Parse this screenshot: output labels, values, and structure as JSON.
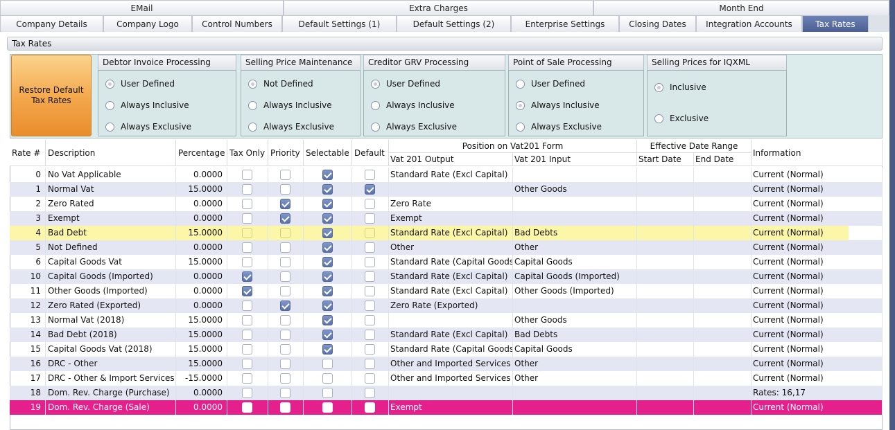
{
  "tabs_top": [
    "EMail",
    "Extra Charges",
    "Month End"
  ],
  "tabs_bottom": [
    "Company Details",
    "Company Logo",
    "Control Numbers",
    "Default Settings (1)",
    "Default Settings (2)",
    "Enterprise Settings",
    "Closing Dates",
    "Integration Accounts",
    "Tax Rates"
  ],
  "active_tab": "Tax Rates",
  "panel_title": "Tax Rates",
  "restore_button": {
    "line1": "Restore Default",
    "line2": "Tax Rates"
  },
  "groups": [
    {
      "title": "Debtor Invoice Processing",
      "options": [
        "User Defined",
        "Always Inclusive",
        "Always Exclusive"
      ],
      "selected": 0
    },
    {
      "title": "Selling Price Maintenance",
      "options": [
        "Not Defined",
        "Always Inclusive",
        "Always Exclusive"
      ],
      "selected": 0
    },
    {
      "title": "Creditor GRV Processing",
      "options": [
        "User Defined",
        "Always Inclusive",
        "Always Exclusive"
      ],
      "selected": 0
    },
    {
      "title": "Point of Sale Processing",
      "options": [
        "User Defined",
        "Always Inclusive",
        "Always Exclusive"
      ],
      "selected": 1
    },
    {
      "title": "Selling Prices for IQXML",
      "options": [
        "Inclusive",
        "Exclusive"
      ],
      "selected": 0
    }
  ],
  "columns": {
    "rate": "Rate #",
    "description": "Description",
    "percentage": "Percentage",
    "tax_only": "Tax Only",
    "priority": "Priority",
    "selectable": "Selectable",
    "default": "Default",
    "vat201_group": "Position on Vat201 Form",
    "vat_output": "Vat 201 Output",
    "vat_input": "Vat 201 Input",
    "date_group": "Effective Date Range",
    "start_date": "Start Date",
    "end_date": "End Date",
    "information": "Information"
  },
  "rows": [
    {
      "rate": "0",
      "description": "No Vat Applicable",
      "percentage": "0.0000",
      "tax_only": false,
      "priority": false,
      "selectable": true,
      "default": false,
      "vat_output": "Standard Rate (Excl Capital)",
      "vat_input": "",
      "information": "Current (Normal)"
    },
    {
      "rate": "1",
      "description": "Normal Vat",
      "percentage": "15.0000",
      "tax_only": false,
      "priority": false,
      "selectable": true,
      "default": true,
      "vat_output": "",
      "vat_input": "Other Goods",
      "information": "Current (Normal)"
    },
    {
      "rate": "2",
      "description": "Zero Rated",
      "percentage": "0.0000",
      "tax_only": false,
      "priority": true,
      "selectable": true,
      "default": false,
      "vat_output": "Zero Rate",
      "vat_input": "",
      "information": "Current (Normal)"
    },
    {
      "rate": "3",
      "description": "Exempt",
      "percentage": "0.0000",
      "tax_only": false,
      "priority": true,
      "selectable": true,
      "default": false,
      "vat_output": "Exempt",
      "vat_input": "",
      "information": "Current (Normal)"
    },
    {
      "rate": "4",
      "description": "Bad Debt",
      "percentage": "15.0000",
      "tax_only": false,
      "priority": false,
      "selectable": true,
      "default": false,
      "vat_output": "Standard Rate (Excl Capital)",
      "vat_input": "Bad Debts",
      "information": "Current (Normal)"
    },
    {
      "rate": "5",
      "description": "Not Defined",
      "percentage": "0.0000",
      "tax_only": false,
      "priority": false,
      "selectable": true,
      "default": false,
      "vat_output": "Other",
      "vat_input": "Other",
      "information": "Current (Normal)"
    },
    {
      "rate": "6",
      "description": "Capital Goods Vat",
      "percentage": "15.0000",
      "tax_only": false,
      "priority": false,
      "selectable": true,
      "default": false,
      "vat_output": "Standard Rate (Capital Goods)",
      "vat_input": "Capital Goods",
      "information": "Current (Normal)"
    },
    {
      "rate": "10",
      "description": "Capital Goods (Imported)",
      "percentage": "0.0000",
      "tax_only": true,
      "priority": false,
      "selectable": true,
      "default": false,
      "vat_output": "Standard Rate (Excl Capital)",
      "vat_input": "Capital Goods (Imported)",
      "information": "Current (Normal)"
    },
    {
      "rate": "11",
      "description": "Other Goods (Imported)",
      "percentage": "0.0000",
      "tax_only": true,
      "priority": false,
      "selectable": true,
      "default": false,
      "vat_output": "Standard Rate (Excl Capital)",
      "vat_input": "Other Goods (Imported)",
      "information": "Current (Normal)"
    },
    {
      "rate": "12",
      "description": "Zero Rated (Exported)",
      "percentage": "0.0000",
      "tax_only": false,
      "priority": true,
      "selectable": true,
      "default": false,
      "vat_output": "Zero Rate (Exported)",
      "vat_input": "",
      "information": "Current (Normal)"
    },
    {
      "rate": "13",
      "description": "Normal Vat (2018)",
      "percentage": "15.0000",
      "tax_only": false,
      "priority": false,
      "selectable": true,
      "default": false,
      "vat_output": "",
      "vat_input": "Other Goods",
      "information": "Current (Normal)"
    },
    {
      "rate": "14",
      "description": "Bad Debt (2018)",
      "percentage": "15.0000",
      "tax_only": false,
      "priority": false,
      "selectable": true,
      "default": false,
      "vat_output": "Standard Rate (Excl Capital)",
      "vat_input": "Bad Debts",
      "information": "Current (Normal)"
    },
    {
      "rate": "15",
      "description": "Capital Goods Vat (2018)",
      "percentage": "15.0000",
      "tax_only": false,
      "priority": false,
      "selectable": true,
      "default": false,
      "vat_output": "Standard Rate (Capital Goods)",
      "vat_input": "Capital Goods",
      "information": "Current (Normal)"
    },
    {
      "rate": "16",
      "description": "DRC - Other",
      "percentage": "15.0000",
      "tax_only": false,
      "priority": false,
      "selectable": false,
      "default": false,
      "vat_output": "Other and Imported Services",
      "vat_input": "Other",
      "information": "Current (Normal)"
    },
    {
      "rate": "17",
      "description": "DRC - Other & Import Services",
      "percentage": "-15.0000",
      "tax_only": false,
      "priority": false,
      "selectable": false,
      "default": false,
      "vat_output": "Other and Imported Services",
      "vat_input": "Other",
      "information": "Current (Normal)"
    },
    {
      "rate": "18",
      "description": "Dom. Rev. Charge (Purchase)",
      "percentage": "0.0000",
      "tax_only": false,
      "priority": false,
      "selectable": false,
      "default": false,
      "vat_output": "",
      "vat_input": "",
      "information": "Rates: 16,17"
    },
    {
      "rate": "19",
      "description": "Dom. Rev. Charge (Sale)",
      "percentage": "0.0000",
      "tax_only": false,
      "priority": false,
      "selectable": false,
      "default": false,
      "vat_output": "Exempt",
      "vat_input": "",
      "information": "Current (Normal)"
    }
  ],
  "highlighted_row": 4,
  "selected_row": 16,
  "colors": {
    "active_tab": "#5b6ea3",
    "restore_button": "#f3a64a",
    "highlight_row": "#fbf6a8",
    "selected_row": "#e51f8b",
    "alt_row": "#e5e6f3",
    "checkbox_checked": "#6f86bd"
  }
}
